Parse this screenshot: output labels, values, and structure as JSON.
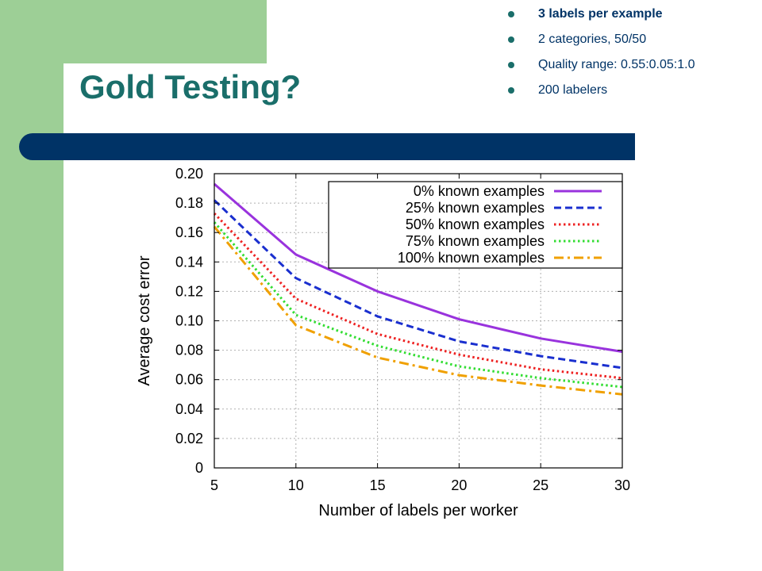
{
  "slide": {
    "title": "Gold Testing?",
    "bullets": [
      {
        "text": "3 labels per example",
        "bold": true
      },
      {
        "text": "2 categories, 50/50",
        "bold": false
      },
      {
        "text": "Quality range: 0.55:0.05:1.0",
        "bold": false
      },
      {
        "text": "200 labelers",
        "bold": false
      }
    ]
  },
  "colors": {
    "green": "#9dcf96",
    "navy": "#003366",
    "title": "#1a6e6a"
  },
  "chart_data": {
    "type": "line",
    "xlabel": "Number of labels per worker",
    "ylabel": "Average cost error",
    "x": [
      5,
      10,
      15,
      20,
      25,
      30
    ],
    "xlim": [
      5,
      30
    ],
    "ylim": [
      0,
      0.2
    ],
    "xticks": [
      "5",
      "10",
      "15",
      "20",
      "25",
      "30"
    ],
    "yticks": [
      "0",
      "0.02",
      "0.04",
      "0.06",
      "0.08",
      "0.10",
      "0.12",
      "0.14",
      "0.16",
      "0.18",
      "0.20"
    ],
    "grid": true,
    "legend_position": "top-right",
    "series": [
      {
        "name": "0% known examples",
        "values": [
          0.193,
          0.145,
          0.12,
          0.101,
          0.088,
          0.079
        ],
        "color": "#9933dd",
        "dash": "solid"
      },
      {
        "name": "25% known examples",
        "values": [
          0.182,
          0.129,
          0.103,
          0.086,
          0.076,
          0.068
        ],
        "color": "#1a2fcf",
        "dash": "dashed"
      },
      {
        "name": "50% known examples",
        "values": [
          0.173,
          0.115,
          0.091,
          0.077,
          0.067,
          0.061
        ],
        "color": "#ee2222",
        "dash": "dotted"
      },
      {
        "name": "75% known examples",
        "values": [
          0.167,
          0.104,
          0.083,
          0.069,
          0.061,
          0.055
        ],
        "color": "#33dd33",
        "dash": "dotted"
      },
      {
        "name": "100% known examples",
        "values": [
          0.164,
          0.097,
          0.075,
          0.063,
          0.056,
          0.05
        ],
        "color": "#f0a000",
        "dash": "dashdot"
      }
    ]
  }
}
